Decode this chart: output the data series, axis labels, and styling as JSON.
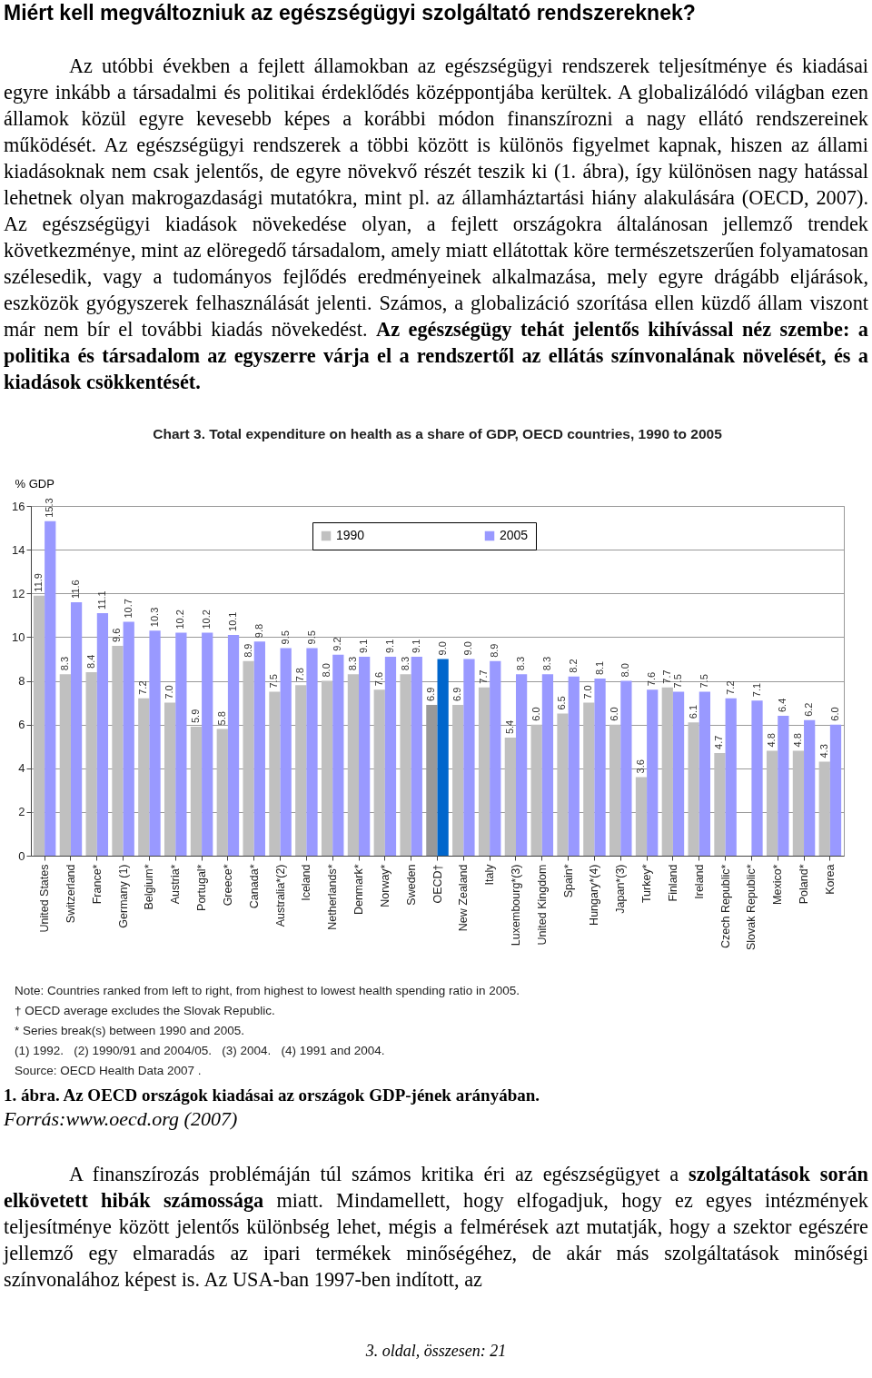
{
  "chart_data": {
    "type": "bar",
    "title": "Chart 3. Total expenditure on health as a share of GDP, OECD countries, 1990 to 2005",
    "ylabel": "% GDP",
    "categories": [
      "United States",
      "Switzerland",
      "France*",
      "Germany (1)",
      "Belgium*",
      "Austria*",
      "Portugal*",
      "Greece*",
      "Canada*",
      "Australia*(2)",
      "Iceland",
      "Netherlands*",
      "Denmark*",
      "Norway*",
      "Sweden",
      "OECD†",
      "New Zealand",
      "Italy",
      "Luxembourg*(3)",
      "United Kingdom",
      "Spain*",
      "Hungary*(4)",
      "Japan*(3)",
      "Turkey*",
      "Finland",
      "Ireland",
      "Czech Republic*",
      "Slovak Republic*",
      "Mexico*",
      "Poland*",
      "Korea"
    ],
    "series": [
      {
        "name": "1990",
        "color": "#c0c0c0",
        "colors": [
          "#c0c0c0",
          "#c0c0c0",
          "#c0c0c0",
          "#c0c0c0",
          "#c0c0c0",
          "#c0c0c0",
          "#c0c0c0",
          "#c0c0c0",
          "#c0c0c0",
          "#c0c0c0",
          "#c0c0c0",
          "#c0c0c0",
          "#c0c0c0",
          "#c0c0c0",
          "#c0c0c0",
          "#999999",
          "#c0c0c0",
          "#c0c0c0",
          "#c0c0c0",
          "#c0c0c0",
          "#c0c0c0",
          "#c0c0c0",
          "#c0c0c0",
          "#c0c0c0",
          "#c0c0c0",
          "#c0c0c0",
          "#c0c0c0",
          null,
          "#c0c0c0",
          "#c0c0c0",
          "#c0c0c0"
        ],
        "values": [
          11.9,
          8.3,
          8.4,
          9.6,
          7.2,
          7.0,
          5.9,
          5.8,
          8.9,
          7.5,
          7.8,
          8.0,
          8.3,
          7.6,
          8.3,
          6.9,
          6.9,
          7.7,
          5.4,
          6.0,
          6.5,
          7.0,
          6.0,
          3.6,
          7.7,
          6.1,
          4.7,
          null,
          4.8,
          4.8,
          4.3
        ],
        "value_labels": [
          "11.9",
          "8.3",
          "8.4",
          "9.6",
          "7.2",
          "7.0",
          "5.9",
          "5.8",
          "8.9",
          "7.5",
          "7.8",
          "8.0",
          "8.3",
          "7.6",
          "8.3",
          "6.9",
          "6.9",
          "7.7",
          "5.4",
          "6.0",
          "6.5",
          "7.0",
          "6.0",
          "3.6",
          "7.7",
          "6.1",
          "4.7",
          null,
          "4.8",
          "4.8",
          "4.3"
        ]
      },
      {
        "name": "2005",
        "color": "#9999ff",
        "colors": [
          "#9999ff",
          "#9999ff",
          "#9999ff",
          "#9999ff",
          "#9999ff",
          "#9999ff",
          "#9999ff",
          "#9999ff",
          "#9999ff",
          "#9999ff",
          "#9999ff",
          "#9999ff",
          "#9999ff",
          "#9999ff",
          "#9999ff",
          "#0066cc",
          "#9999ff",
          "#9999ff",
          "#9999ff",
          "#9999ff",
          "#9999ff",
          "#9999ff",
          "#9999ff",
          "#9999ff",
          "#9999ff",
          "#9999ff",
          "#9999ff",
          "#9999ff",
          "#9999ff",
          "#9999ff",
          "#9999ff"
        ],
        "values": [
          15.3,
          11.6,
          11.1,
          10.7,
          10.3,
          10.2,
          10.2,
          10.1,
          9.8,
          9.5,
          9.5,
          9.2,
          9.1,
          9.1,
          9.1,
          9.0,
          9.0,
          8.9,
          8.3,
          8.3,
          8.2,
          8.1,
          8.0,
          7.6,
          7.5,
          7.5,
          7.2,
          7.1,
          6.4,
          6.2,
          6.0
        ],
        "value_labels": [
          "15.3",
          "11.6",
          "11.1",
          "10.7",
          "10.3",
          "10.2",
          "10.2",
          "10.1",
          "9.8",
          "9.5",
          "9.5",
          "9.2",
          "9.1",
          "9.1",
          "9.1",
          "9.0",
          "9.0",
          "8.9",
          "8.3",
          "8.3",
          "8.2",
          "8.1",
          "8.0",
          "7.6",
          "7.5",
          "7.5",
          "7.2",
          "7.1",
          "6.4",
          "6.2",
          "6.0"
        ]
      }
    ],
    "ylim": [
      0,
      16
    ],
    "yticks": [
      0,
      2,
      4,
      6,
      8,
      10,
      12,
      14,
      16
    ],
    "grid": "y",
    "legend": "top",
    "annotations": [
      "Miért kell megváltozniuk az egészségügyi szolgáltató rendszereknek?",
      "Az utóbbi években a fejlett államokban az egészségügyi rendszerek teljesítménye és kiadásai egyre inkább a társadalmi és politikai érdeklődés középpontjába kerültek. A globalizálódó világban ezen államok közül egyre kevesebb képes a korábbi módon finanszírozni a nagy ellátó rendszereinek működését. Az egészségügyi rendszerek a többi között is különös figyelmet kapnak, hiszen az állami kiadásoknak nem csak jelentős, de egyre növekvő részét teszik ki (1. ábra), így különösen nagy hatással lehetnek olyan makrogazdasági mutatókra, mint pl. az államháztartási hiány alakulására (OECD, 2007). Az egészségügyi kiadások növekedése olyan, a fejlett országokra általánosan jellemző trendek következménye, mint az elöregedő társadalom, amely miatt ellátottak köre természetszerűen folyamatosan szélesedik, vagy a tudományos fejlődés eredményeinek alkalmazása, mely egyre drágább eljárások, eszközök gyógyszerek felhasználását jelenti. Számos, a globalizáció szorítása ellen küzdő állam viszont már nem bír el további kiadás növekedést.",
      "Az egészségügy tehát jelentős kihívással néz szembe: a politika és társadalom az egyszerre várja el a rendszertől az ellátás színvonalának növelését, és a kiadások csökkentését.",
      "Note: Countries ranked from left to right, from highest to lowest health spending ratio in 2005.",
      "† OECD average excludes the Slovak Republic.",
      "* Series break(s) between 1990 and 2005.",
      "(1) 1992.   (2) 1990/91 and 2004/05.   (3) 2004.   (4) 1991 and 2004.",
      "Source: OECD Health Data 2007 .",
      "1. ábra. Az OECD országok kiadásai az országok GDP-jének arányában.",
      "Forrás:www.oecd.org (2007)",
      "A finanszírozás problémáján túl számos kritika éri az egészségügyet a",
      "szolgáltatások során elkövetett hibák számossága",
      "miatt. Mindamellett, hogy elfogadjuk, hogy ez egyes intézmények teljesítménye között jelentős különbség lehet, mégis a felmérések azt mutatják, hogy a szektor egészére jellemző egy elmaradás az ipari termékek minőségéhez, de akár más szolgáltatások minőségi színvonalához képest is. Az USA-ban 1997-ben indított, az",
      "3. oldal, összesen: 21"
    ]
  }
}
